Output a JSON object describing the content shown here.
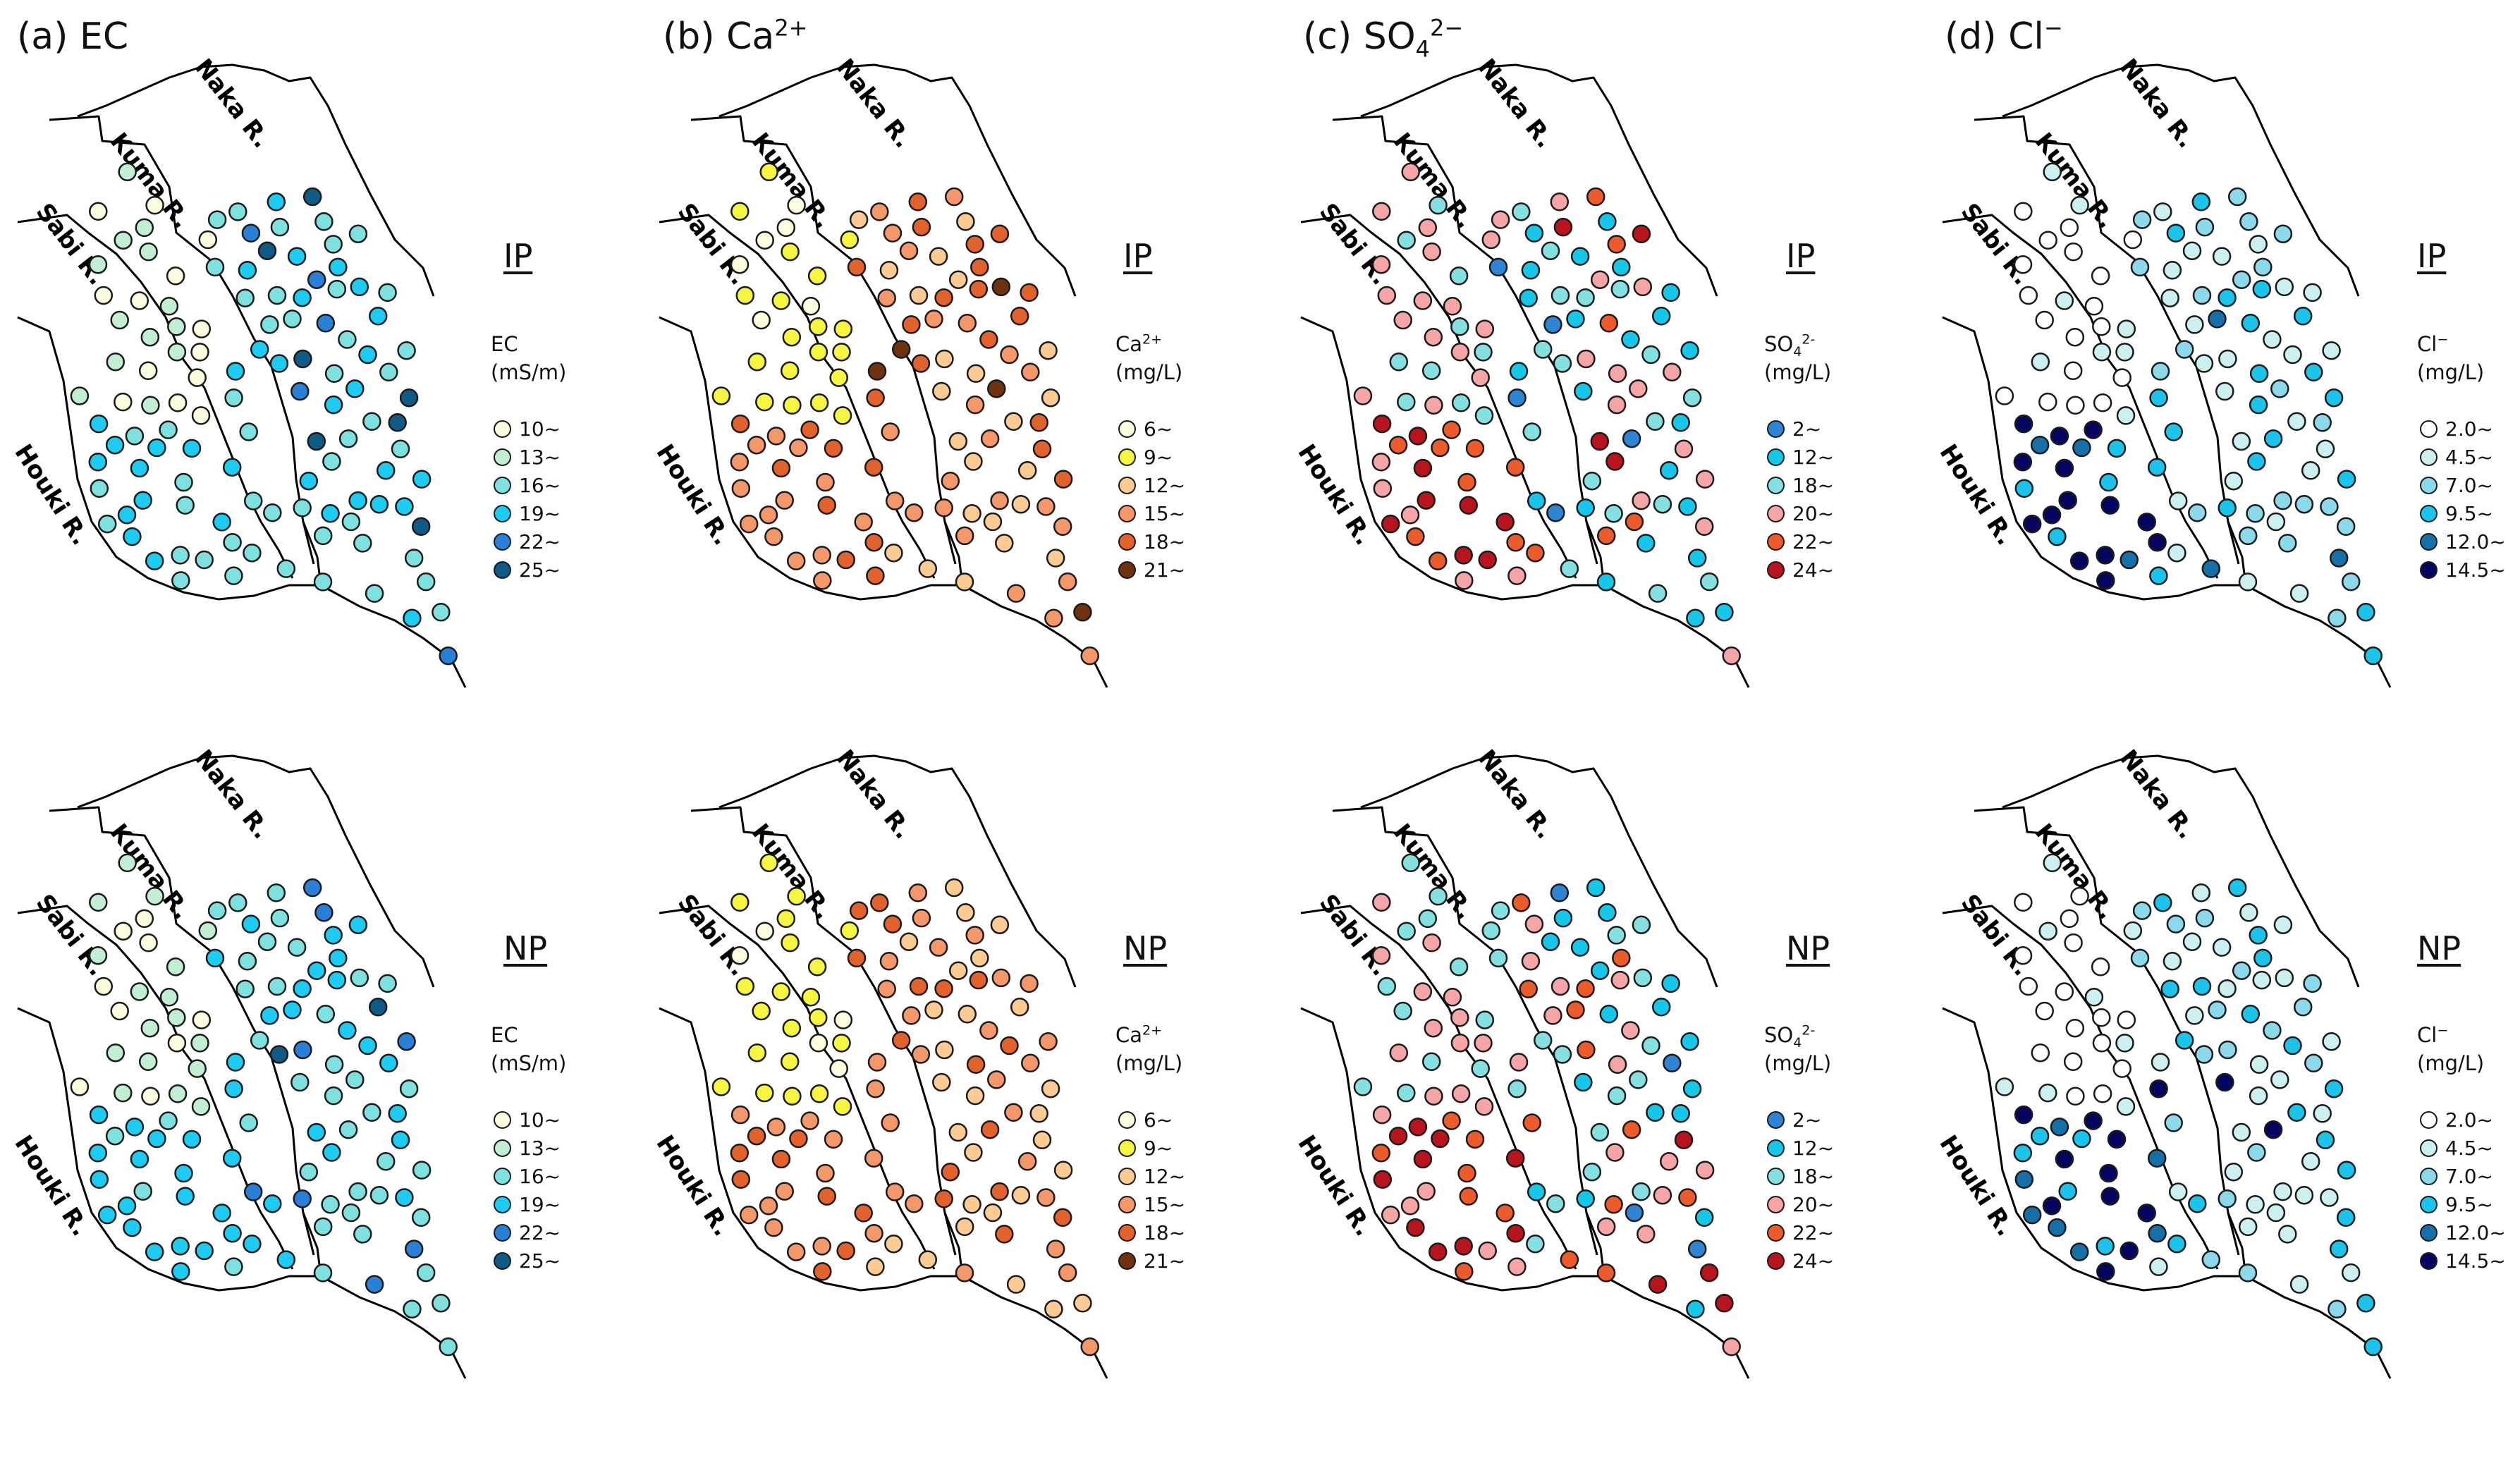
{
  "panels": [
    {
      "letter": "(a)",
      "variable": "EC",
      "legend_title": "EC",
      "legend_unit": "(mS/m)",
      "colors": [
        "#fdfde0",
        "#c2efd4",
        "#7fe1df",
        "#1ecbf2",
        "#2a7fd6",
        "#0f5b86"
      ],
      "bins": [
        "10~",
        "13~",
        "16~",
        "19~",
        "22~",
        "25~"
      ]
    },
    {
      "letter": "(b)",
      "variable": "Ca",
      "charge": "2+",
      "legend_title": "Ca",
      "legend_unit": "(mg/L)",
      "colors": [
        "#fefee0",
        "#f6f542",
        "#fbcb93",
        "#f4976a",
        "#e2622d",
        "#6f3210"
      ],
      "bins": [
        "6~",
        "9~",
        "12~",
        "15~",
        "18~",
        "21~"
      ]
    },
    {
      "letter": "(c)",
      "variable": "SO",
      "subscript": "4",
      "charge": "2−",
      "legend_charge": "2-",
      "legend_title": "SO",
      "legend_unit": "(mg/L)",
      "colors": [
        "#2f85d4",
        "#17c7ea",
        "#85e0e2",
        "#f5a5a6",
        "#eb5b2c",
        "#b7141d"
      ],
      "bins": [
        "2~",
        "12~",
        "18~",
        "20~",
        "22~",
        "24~"
      ]
    },
    {
      "letter": "(d)",
      "variable": "Cl",
      "charge": "−",
      "legend_title": "Cl",
      "legend_unit": "(mg/L)",
      "colors": [
        "#ffffff",
        "#ccefef",
        "#8dd9ec",
        "#1cc3ea",
        "#176fa8",
        "#050560"
      ],
      "bins": [
        "2.0~",
        "4.5~",
        "7.0~",
        "9.5~",
        "12.0~",
        "14.5~"
      ]
    }
  ],
  "periods": [
    "IP",
    "NP"
  ],
  "rivers": [
    "Naka R.",
    "Kuma R.",
    "Sabi R.",
    "Houki R."
  ]
}
